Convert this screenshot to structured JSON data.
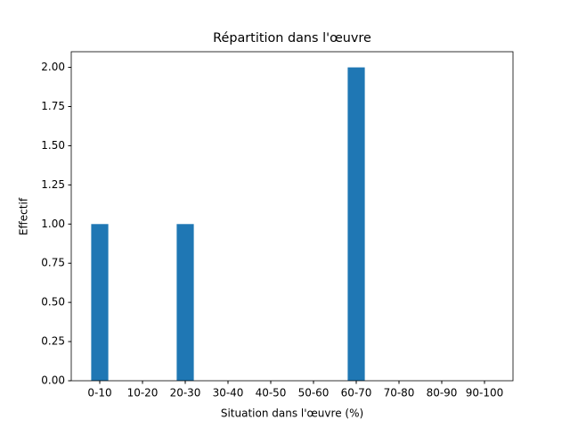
{
  "chart_data": {
    "type": "bar",
    "title": "Répartition dans l'œuvre",
    "xlabel": "Situation dans l'œuvre (%)",
    "ylabel": "Effectif",
    "categories": [
      "0-10",
      "10-20",
      "20-30",
      "30-40",
      "40-50",
      "50-60",
      "60-70",
      "70-80",
      "80-90",
      "90-100"
    ],
    "values": [
      1,
      0,
      1,
      0,
      0,
      0,
      2,
      0,
      0,
      0
    ],
    "color": "#1f77b4",
    "ylim": [
      0,
      2.1
    ],
    "yticks": [
      {
        "value": 0,
        "label": "0.00"
      },
      {
        "value": 0.25,
        "label": "0.25"
      },
      {
        "value": 0.5,
        "label": "0.50"
      },
      {
        "value": 0.75,
        "label": "0.75"
      },
      {
        "value": 1,
        "label": "1.00"
      },
      {
        "value": 1.25,
        "label": "1.25"
      },
      {
        "value": 1.5,
        "label": "1.50"
      },
      {
        "value": 1.75,
        "label": "1.75"
      },
      {
        "value": 2,
        "label": "2.00"
      }
    ],
    "grid": false
  }
}
